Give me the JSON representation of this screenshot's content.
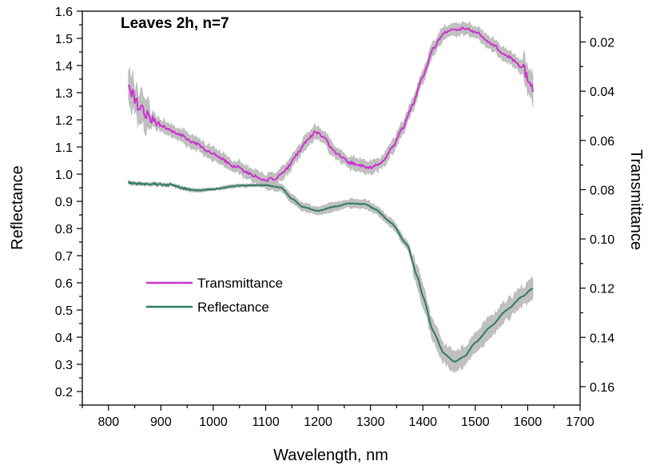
{
  "chart_data": {
    "type": "line",
    "title": "Leaves 2h, n=7",
    "xlabel": "Wavelength, nm",
    "ylabel": "Reflectance",
    "y2label": "Transmittance",
    "xlim": [
      750,
      1700
    ],
    "ylim": [
      0.15,
      1.6
    ],
    "y2lim": [
      0.0075,
      0.1675
    ],
    "y2_inverted": true,
    "x_ticks": [
      "800",
      "900",
      "1000",
      "1100",
      "1200",
      "1300",
      "1400",
      "1500",
      "1600",
      "1700"
    ],
    "y_ticks": [
      "0.2",
      "0.3",
      "0.4",
      "0.5",
      "0.6",
      "0.7",
      "0.8",
      "0.9",
      "1.0",
      "1.1",
      "1.2",
      "1.3",
      "1.4",
      "1.5",
      "1.6"
    ],
    "y2_ticks": [
      "0.02",
      "0.04",
      "0.06",
      "0.08",
      "0.10",
      "0.12",
      "0.14",
      "0.16"
    ],
    "grid": false,
    "legend_position": "lower-left",
    "colors": {
      "transmittance": "#cc33cc",
      "reflectance": "#2e7d5b",
      "error_band": "#bdbdbd",
      "axis": "#000000"
    },
    "series": [
      {
        "name": "Transmittance",
        "axis": "right",
        "x": [
          838,
          845,
          860,
          880,
          900,
          930,
          960,
          1000,
          1040,
          1080,
          1100,
          1120,
          1140,
          1160,
          1180,
          1195,
          1210,
          1230,
          1260,
          1300,
          1320,
          1340,
          1360,
          1380,
          1400,
          1420,
          1440,
          1460,
          1480,
          1500,
          1530,
          1560,
          1590,
          1610
        ],
        "y": [
          0.037,
          0.041,
          0.047,
          0.051,
          0.054,
          0.057,
          0.0605,
          0.0655,
          0.0705,
          0.0745,
          0.076,
          0.0755,
          0.0715,
          0.0655,
          0.0595,
          0.0565,
          0.0585,
          0.0645,
          0.069,
          0.071,
          0.0695,
          0.0635,
          0.0555,
          0.046,
          0.034,
          0.0225,
          0.0165,
          0.015,
          0.0145,
          0.016,
          0.0205,
          0.0255,
          0.0305,
          0.039
        ],
        "error": 0.0025
      },
      {
        "name": "Reflectance",
        "axis": "left",
        "x": [
          838,
          850,
          880,
          920,
          950,
          970,
          1000,
          1050,
          1100,
          1130,
          1150,
          1170,
          1200,
          1230,
          1260,
          1290,
          1310,
          1340,
          1370,
          1390,
          1400,
          1420,
          1440,
          1460,
          1480,
          1500,
          1530,
          1560,
          1590,
          1610
        ],
        "y": [
          0.97,
          0.965,
          0.965,
          0.96,
          0.945,
          0.94,
          0.945,
          0.958,
          0.96,
          0.95,
          0.91,
          0.88,
          0.865,
          0.88,
          0.892,
          0.89,
          0.87,
          0.82,
          0.74,
          0.62,
          0.55,
          0.42,
          0.34,
          0.31,
          0.33,
          0.38,
          0.44,
          0.5,
          0.55,
          0.58
        ],
        "error": 0.03
      }
    ]
  }
}
